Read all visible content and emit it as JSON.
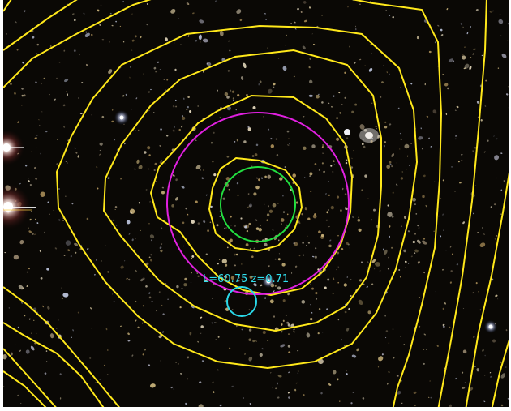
{
  "image": {
    "background_color": "#0a0805",
    "border_color": "#ffffff",
    "contour_color": "#ffe81a",
    "galaxy_colors": [
      "#c8b27a",
      "#e8dcc0",
      "#b89a60",
      "#9a8a70",
      "#d8c8a0",
      "#a8a8b8",
      "#c0c8e0"
    ]
  },
  "overlays": {
    "magenta_circle": {
      "color": "#e020e0"
    },
    "green_circle": {
      "color": "#22e040"
    },
    "cyan_circle": {
      "color": "#2ad8e8"
    }
  },
  "annotation": {
    "text": "L=60.75 z=0.71",
    "color": "#30e0f0"
  }
}
